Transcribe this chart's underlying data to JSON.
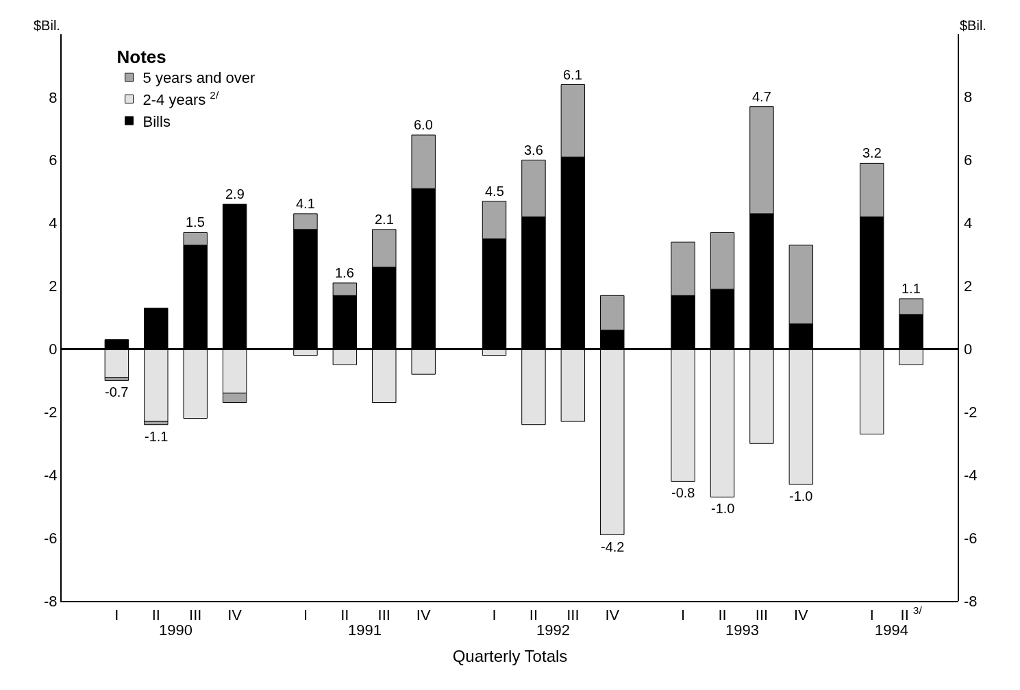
{
  "chart_data": {
    "type": "bar",
    "stacked": true,
    "xlabel": "Quarterly Totals",
    "ylabel": "$Bil.",
    "y2label": "$Bil.",
    "legend_title": "Notes",
    "categories": [
      "I",
      "II",
      "III",
      "IV",
      "I",
      "II",
      "III",
      "IV",
      "I",
      "II",
      "III",
      "IV",
      "I",
      "II",
      "III",
      "IV",
      "I",
      "II $^{3/}$"
    ],
    "series": [
      {
        "name": "Bills",
        "color": "#000000",
        "values": [
          0.3,
          1.3,
          3.3,
          4.6,
          3.8,
          1.7,
          2.6,
          5.1,
          3.5,
          4.2,
          6.1,
          0.6,
          1.7,
          1.9,
          4.3,
          0.8,
          4.2,
          1.1
        ]
      },
      {
        "name": "2-4 years $^{2/}$",
        "color": "#e3e3e3",
        "values": [
          -0.9,
          -2.3,
          -2.2,
          -1.4,
          -0.2,
          -0.5,
          -1.7,
          -0.8,
          -0.2,
          -2.4,
          -2.3,
          -5.9,
          -4.2,
          -4.7,
          -3.0,
          -4.3,
          -2.7,
          -0.5
        ]
      },
      {
        "name": "5 years and over",
        "color": "#a6a6a6",
        "values": [
          -0.1,
          -0.1,
          0.4,
          -0.3,
          0.5,
          0.4,
          1.2,
          1.7,
          1.2,
          1.8,
          2.3,
          1.1,
          1.7,
          1.8,
          3.4,
          2.5,
          1.7,
          0.5
        ]
      }
    ],
    "totals": [
      "-0.7",
      "-1.1",
      "1.5",
      "2.9",
      "4.1",
      "1.6",
      "2.1",
      "6.0",
      "4.5",
      "3.6",
      "6.1",
      "-4.2",
      "-0.8",
      "-1.0",
      "4.7",
      "-1.0",
      "3.2",
      "1.1"
    ],
    "annotations": [
      "1990",
      "1991",
      "1992",
      "1993",
      "1994"
    ],
    "ref_lines": [
      {
        "axis": "y",
        "value": 0,
        "color": "#000000"
      }
    ],
    "ylim": [
      -8,
      10
    ],
    "yticks": [
      -8,
      -6,
      -4,
      -2,
      0,
      2,
      4,
      6,
      8
    ],
    "y2lim": [
      -8,
      10
    ],
    "y2ticks": [
      -8,
      -6,
      -4,
      -2,
      0,
      2,
      4,
      6,
      8
    ],
    "legend": "top left"
  }
}
